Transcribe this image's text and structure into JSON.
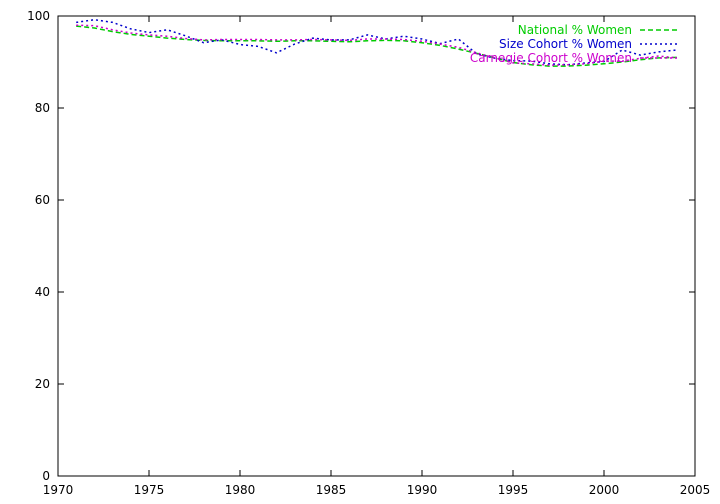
{
  "chart_data": {
    "type": "line",
    "title": "",
    "xlabel": "",
    "ylabel": "",
    "xlim": [
      1970,
      2005
    ],
    "ylim": [
      0,
      100
    ],
    "xticks": [
      1970,
      1975,
      1980,
      1985,
      1990,
      1995,
      2000,
      2005
    ],
    "yticks": [
      0,
      20,
      40,
      60,
      80,
      100
    ],
    "grid": false,
    "legend_position": "top-right",
    "x": [
      1971,
      1972,
      1973,
      1974,
      1975,
      1976,
      1977,
      1978,
      1979,
      1980,
      1981,
      1982,
      1983,
      1984,
      1985,
      1986,
      1987,
      1988,
      1989,
      1990,
      1991,
      1992,
      1993,
      1994,
      1995,
      1996,
      1997,
      1998,
      1999,
      2000,
      2001,
      2002,
      2003,
      2004
    ],
    "series": [
      {
        "name": "National % Women",
        "color": "#00cc00",
        "dash": "dashed",
        "values": [
          97.8,
          97.4,
          96.6,
          96.0,
          95.6,
          95.2,
          94.9,
          94.7,
          94.6,
          94.6,
          94.6,
          94.5,
          94.6,
          94.6,
          94.5,
          94.4,
          94.6,
          94.7,
          94.6,
          94.2,
          93.6,
          92.8,
          91.9,
          90.9,
          89.9,
          89.4,
          89.1,
          89.1,
          89.3,
          89.6,
          90.0,
          90.5,
          90.9,
          91.0
        ]
      },
      {
        "name": "Size Cohort % Women",
        "color": "#0000cc",
        "dash": "dotted",
        "values": [
          98.6,
          99.2,
          98.6,
          97.2,
          96.4,
          97.0,
          95.7,
          94.2,
          94.8,
          93.8,
          93.4,
          92.0,
          93.9,
          95.2,
          94.8,
          94.8,
          95.9,
          95.0,
          95.6,
          95.0,
          94.0,
          95.0,
          91.8,
          90.8,
          90.3,
          90.2,
          89.6,
          89.4,
          89.8,
          90.1,
          92.6,
          91.5,
          92.2,
          92.6
        ]
      },
      {
        "name": "Carnegie Cohort % Women",
        "color": "#cc00cc",
        "dash": "dotted",
        "values": [
          98.0,
          97.9,
          97.0,
          96.3,
          95.9,
          95.6,
          95.1,
          94.8,
          94.9,
          94.9,
          94.9,
          94.8,
          94.8,
          94.9,
          94.8,
          94.7,
          95.0,
          95.0,
          94.9,
          94.5,
          93.9,
          93.2,
          92.0,
          90.9,
          89.8,
          89.6,
          89.3,
          89.4,
          89.6,
          90.2,
          90.2,
          90.8,
          91.3,
          90.9
        ]
      }
    ]
  }
}
